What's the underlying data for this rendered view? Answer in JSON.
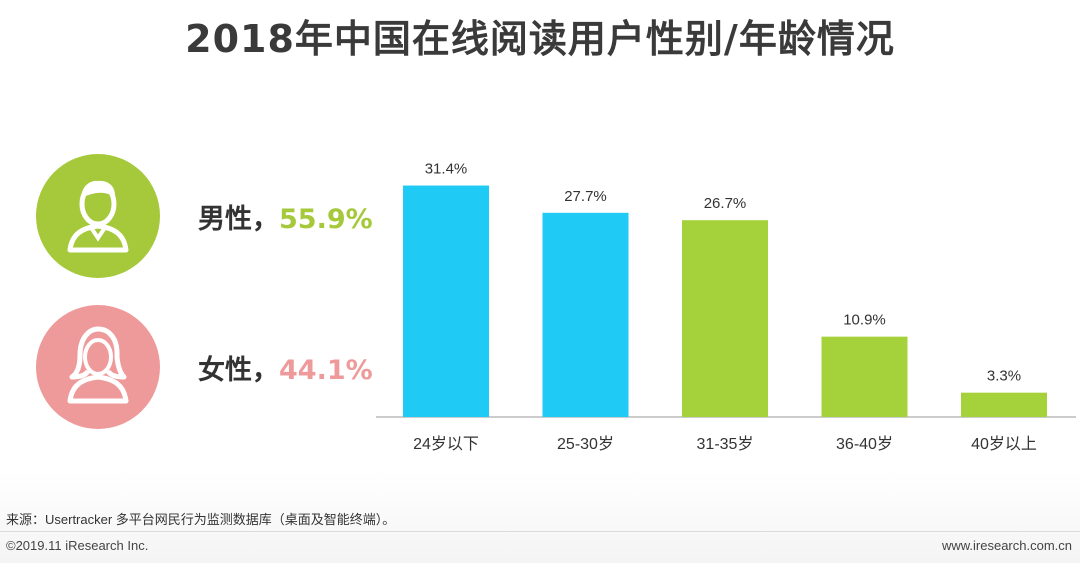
{
  "title": "2018年中国在线阅读用户性别/年龄情况",
  "gender": {
    "male": {
      "label": "男性，",
      "percent": "55.9%",
      "color": "#a5c93a"
    },
    "female": {
      "label": "女性，",
      "percent": "44.1%",
      "color": "#ef9a9a"
    }
  },
  "chart_data": {
    "type": "bar",
    "title": "",
    "xlabel": "",
    "ylabel": "",
    "ylim": [
      0,
      35
    ],
    "grid": false,
    "categories": [
      "24岁以下",
      "25-30岁",
      "31-35岁",
      "36-40岁",
      "40岁以上"
    ],
    "values": [
      31.4,
      27.7,
      26.7,
      10.9,
      3.3
    ],
    "data_labels": [
      "31.4%",
      "27.7%",
      "26.7%",
      "10.9%",
      "3.3%"
    ],
    "colors": [
      "#1fcaf5",
      "#1fcaf5",
      "#a5d23a",
      "#a5d23a",
      "#a5d23a"
    ]
  },
  "footer": {
    "source": "来源：Usertracker 多平台网民行为监测数据库（桌面及智能终端）。",
    "copyright": "©2019.11 iResearch Inc.",
    "website": "www.iresearch.com.cn"
  }
}
